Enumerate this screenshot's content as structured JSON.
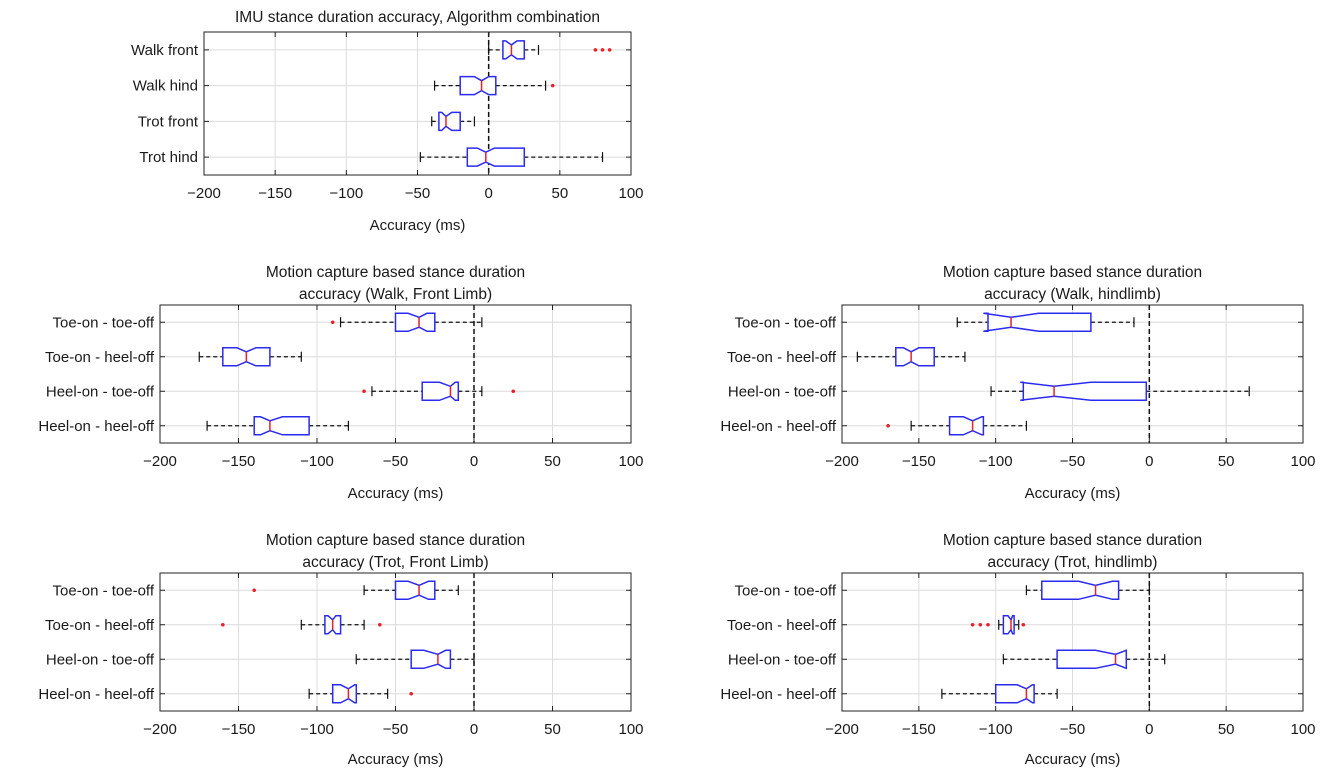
{
  "chart_data": [
    {
      "type": "boxplot",
      "orientation": "horizontal",
      "title": [
        "IMU stance duration accuracy, Algorithm combination"
      ],
      "xlabel": "Accuracy (ms)",
      "xlim": [
        -200,
        100
      ],
      "xticks": [
        "−200",
        "−150",
        "−100",
        "−50",
        "0",
        "50",
        "100"
      ],
      "grid": true,
      "notched": true,
      "reference_line_x": 0,
      "categories": [
        "Walk front",
        "Walk hind",
        "Trot front",
        "Trot hind"
      ],
      "boxes": [
        {
          "whisker_low": 0,
          "q1": 10,
          "median": 16,
          "q3": 25,
          "whisker_high": 35,
          "notch_low": 12,
          "notch_high": 20,
          "outliers": [
            75,
            80,
            85
          ]
        },
        {
          "whisker_low": -38,
          "q1": -20,
          "median": -5,
          "q3": 5,
          "whisker_high": 40,
          "notch_low": -10,
          "notch_high": 0,
          "outliers": [
            45
          ]
        },
        {
          "whisker_low": -40,
          "q1": -35,
          "median": -30,
          "q3": -20,
          "whisker_high": -10,
          "notch_low": -33,
          "notch_high": -26,
          "outliers": []
        },
        {
          "whisker_low": -48,
          "q1": -15,
          "median": -2,
          "q3": 25,
          "whisker_high": 80,
          "notch_low": -8,
          "notch_high": 4,
          "outliers": []
        }
      ]
    },
    {
      "type": "boxplot",
      "orientation": "horizontal",
      "title": [
        "Motion capture based stance duration",
        "accuracy (Walk, Front Limb)"
      ],
      "xlabel": "Accuracy (ms)",
      "xlim": [
        -200,
        100
      ],
      "xticks": [
        "−200",
        "−150",
        "−100",
        "−50",
        "0",
        "50",
        "100"
      ],
      "grid": true,
      "notched": true,
      "reference_line_x": 0,
      "categories": [
        "Toe-on - toe-off",
        "Toe-on - heel-off",
        "Heel-on - toe-off",
        "Heel-on - heel-off"
      ],
      "boxes": [
        {
          "whisker_low": -85,
          "q1": -50,
          "median": -35,
          "q3": -25,
          "whisker_high": 5,
          "notch_low": -42,
          "notch_high": -30,
          "outliers": [
            -90
          ]
        },
        {
          "whisker_low": -175,
          "q1": -160,
          "median": -145,
          "q3": -130,
          "whisker_high": -110,
          "notch_low": -151,
          "notch_high": -139,
          "outliers": []
        },
        {
          "whisker_low": -65,
          "q1": -33,
          "median": -15,
          "q3": -10,
          "whisker_high": 5,
          "notch_low": -22,
          "notch_high": -12,
          "outliers": [
            -70,
            25
          ]
        },
        {
          "whisker_low": -170,
          "q1": -140,
          "median": -130,
          "q3": -105,
          "whisker_high": -80,
          "notch_low": -136,
          "notch_high": -122,
          "outliers": []
        }
      ]
    },
    {
      "type": "boxplot",
      "orientation": "horizontal",
      "title": [
        "Motion capture based stance duration",
        "accuracy (Walk, hindlimb)"
      ],
      "xlabel": "Accuracy (ms)",
      "xlim": [
        -200,
        100
      ],
      "xticks": [
        "−200",
        "−150",
        "−100",
        "−50",
        "0",
        "50",
        "100"
      ],
      "grid": true,
      "notched": true,
      "reference_line_x": 0,
      "categories": [
        "Toe-on - toe-off",
        "Toe-on - heel-off",
        "Heel-on - toe-off",
        "Heel-on - heel-off"
      ],
      "boxes": [
        {
          "whisker_low": -125,
          "q1": -105,
          "median": -90,
          "q3": -38,
          "whisker_high": -10,
          "notch_low": -108,
          "notch_high": -72,
          "outliers": []
        },
        {
          "whisker_low": -190,
          "q1": -165,
          "median": -155,
          "q3": -140,
          "whisker_high": -120,
          "notch_low": -160,
          "notch_high": -150,
          "outliers": []
        },
        {
          "whisker_low": -103,
          "q1": -82,
          "median": -62,
          "q3": -2,
          "whisker_high": 65,
          "notch_low": -84,
          "notch_high": -38,
          "outliers": []
        },
        {
          "whisker_low": -155,
          "q1": -130,
          "median": -115,
          "q3": -108,
          "whisker_high": -80,
          "notch_low": -121,
          "notch_high": -109,
          "outliers": [
            -170
          ]
        }
      ]
    },
    {
      "type": "boxplot",
      "orientation": "horizontal",
      "title": [
        "Motion capture based stance duration",
        "accuracy (Trot, Front Limb)"
      ],
      "xlabel": "Accuracy (ms)",
      "xlim": [
        -200,
        100
      ],
      "xticks": [
        "−200",
        "−150",
        "−100",
        "−50",
        "0",
        "50",
        "100"
      ],
      "grid": true,
      "notched": true,
      "reference_line_x": 0,
      "categories": [
        "Toe-on - toe-off",
        "Toe-on - heel-off",
        "Heel-on - toe-off",
        "Heel-on - heel-off"
      ],
      "boxes": [
        {
          "whisker_low": -70,
          "q1": -50,
          "median": -35,
          "q3": -25,
          "whisker_high": -10,
          "notch_low": -42,
          "notch_high": -29,
          "outliers": [
            -140
          ]
        },
        {
          "whisker_low": -110,
          "q1": -95,
          "median": -90,
          "q3": -85,
          "whisker_high": -70,
          "notch_low": -93,
          "notch_high": -88,
          "outliers": [
            -160,
            -60
          ]
        },
        {
          "whisker_low": -75,
          "q1": -40,
          "median": -23,
          "q3": -15,
          "whisker_high": 0,
          "notch_low": -32,
          "notch_high": -18,
          "outliers": []
        },
        {
          "whisker_low": -105,
          "q1": -90,
          "median": -80,
          "q3": -75,
          "whisker_high": -55,
          "notch_low": -85,
          "notch_high": -76,
          "outliers": [
            -40
          ]
        }
      ]
    },
    {
      "type": "boxplot",
      "orientation": "horizontal",
      "title": [
        "Motion capture based stance duration",
        "accuracy (Trot, hindlimb)"
      ],
      "xlabel": "Accuracy (ms)",
      "xlim": [
        -200,
        100
      ],
      "xticks": [
        "−200",
        "−150",
        "−100",
        "−50",
        "0",
        "50",
        "100"
      ],
      "grid": true,
      "notched": true,
      "reference_line_x": 0,
      "categories": [
        "Toe-on - toe-off",
        "Toe-on - heel-off",
        "Heel-on - toe-off",
        "Heel-on - heel-off"
      ],
      "boxes": [
        {
          "whisker_low": -80,
          "q1": -70,
          "median": -35,
          "q3": -20,
          "whisker_high": 0,
          "notch_low": -46,
          "notch_high": -24,
          "outliers": []
        },
        {
          "whisker_low": -98,
          "q1": -95,
          "median": -90,
          "q3": -88,
          "whisker_high": -85,
          "notch_low": -92,
          "notch_high": -89,
          "outliers": [
            -115,
            -110,
            -105,
            -82
          ]
        },
        {
          "whisker_low": -95,
          "q1": -60,
          "median": -22,
          "q3": -15,
          "whisker_high": 10,
          "notch_low": -35,
          "notch_high": -15,
          "outliers": []
        },
        {
          "whisker_low": -135,
          "q1": -100,
          "median": -80,
          "q3": -75,
          "whisker_high": -60,
          "notch_low": -86,
          "notch_high": -76,
          "outliers": []
        }
      ]
    }
  ]
}
